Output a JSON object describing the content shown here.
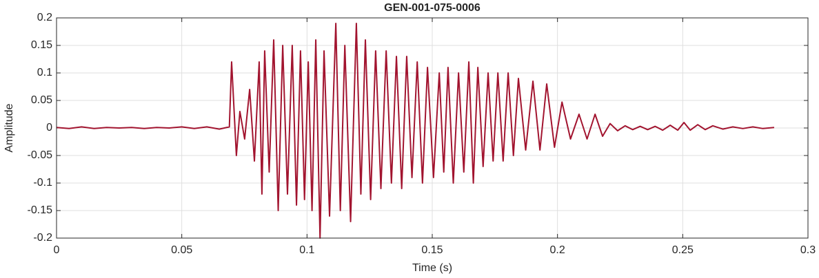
{
  "chart_data": {
    "type": "line",
    "title": "GEN-001-075-0006",
    "xlabel": "Time (s)",
    "ylabel": "Amplitude",
    "color": "#a2142f",
    "grid": true,
    "xlim": [
      0,
      0.3
    ],
    "xticks": [
      0,
      0.05,
      0.1,
      0.15,
      0.2,
      0.25,
      0.3
    ],
    "ylim": [
      -0.2,
      0.2
    ],
    "yticks": [
      -0.2,
      -0.15,
      -0.1,
      -0.05,
      0,
      0.05,
      0.1,
      0.15,
      0.2
    ],
    "x": [
      0,
      0.005,
      0.01,
      0.015,
      0.02,
      0.025,
      0.03,
      0.035,
      0.04,
      0.045,
      0.05,
      0.055,
      0.06,
      0.065,
      0.069,
      0.0699,
      0.0718,
      0.0732,
      0.0751,
      0.0771,
      0.079,
      0.0809,
      0.082,
      0.0831,
      0.0849,
      0.0867,
      0.0885,
      0.0903,
      0.0922,
      0.0941,
      0.0958,
      0.0974,
      0.099,
      0.1005,
      0.102,
      0.1035,
      0.1052,
      0.1068,
      0.109,
      0.1115,
      0.1133,
      0.1151,
      0.1174,
      0.1197,
      0.1215,
      0.1233,
      0.1254,
      0.1274,
      0.1295,
      0.1316,
      0.1337,
      0.1357,
      0.1378,
      0.1398,
      0.1419,
      0.144,
      0.1461,
      0.1481,
      0.1505,
      0.1528,
      0.1546,
      0.1563,
      0.1584,
      0.1605,
      0.1626,
      0.1646,
      0.1664,
      0.1682,
      0.1703,
      0.1723,
      0.1743,
      0.1762,
      0.1783,
      0.1803,
      0.1824,
      0.1844,
      0.1873,
      0.1902,
      0.193,
      0.1957,
      0.1988,
      0.2018,
      0.2052,
      0.2086,
      0.2118,
      0.215,
      0.218,
      0.221,
      0.224,
      0.227,
      0.23,
      0.233,
      0.236,
      0.239,
      0.242,
      0.245,
      0.248,
      0.2505,
      0.253,
      0.256,
      0.259,
      0.262,
      0.266,
      0.27,
      0.274,
      0.278,
      0.282,
      0.2865
    ],
    "values": [
      0.001,
      -0.001,
      0.002,
      -0.001,
      0.001,
      0,
      0.001,
      -0.001,
      0.001,
      0,
      0.002,
      -0.001,
      0.002,
      -0.002,
      0.002,
      0.12,
      -0.05,
      0.03,
      -0.02,
      0.07,
      -0.06,
      0.12,
      -0.12,
      0.14,
      -0.08,
      0.16,
      -0.15,
      0.15,
      -0.12,
      0.15,
      -0.14,
      0.14,
      -0.13,
      0.12,
      -0.15,
      0.16,
      -0.2,
      0.14,
      -0.16,
      0.19,
      -0.15,
      0.15,
      -0.17,
      0.19,
      -0.12,
      0.16,
      -0.13,
      0.14,
      -0.11,
      0.14,
      -0.1,
      0.13,
      -0.11,
      0.13,
      -0.09,
      0.12,
      -0.1,
      0.11,
      -0.09,
      0.1,
      -0.08,
      0.11,
      -0.1,
      0.1,
      -0.08,
      0.12,
      -0.1,
      0.11,
      -0.07,
      0.1,
      -0.06,
      0.1,
      -0.06,
      0.1,
      -0.05,
      0.09,
      -0.04,
      0.085,
      -0.04,
      0.08,
      -0.035,
      0.047,
      -0.02,
      0.025,
      -0.02,
      0.025,
      -0.015,
      0.008,
      -0.005,
      0.004,
      -0.003,
      0.003,
      -0.003,
      0.003,
      -0.004,
      0.005,
      -0.004,
      0.01,
      -0.004,
      0.006,
      -0.003,
      0.004,
      -0.002,
      0.002,
      -0.001,
      0.002,
      -0.001,
      0.001
    ]
  }
}
